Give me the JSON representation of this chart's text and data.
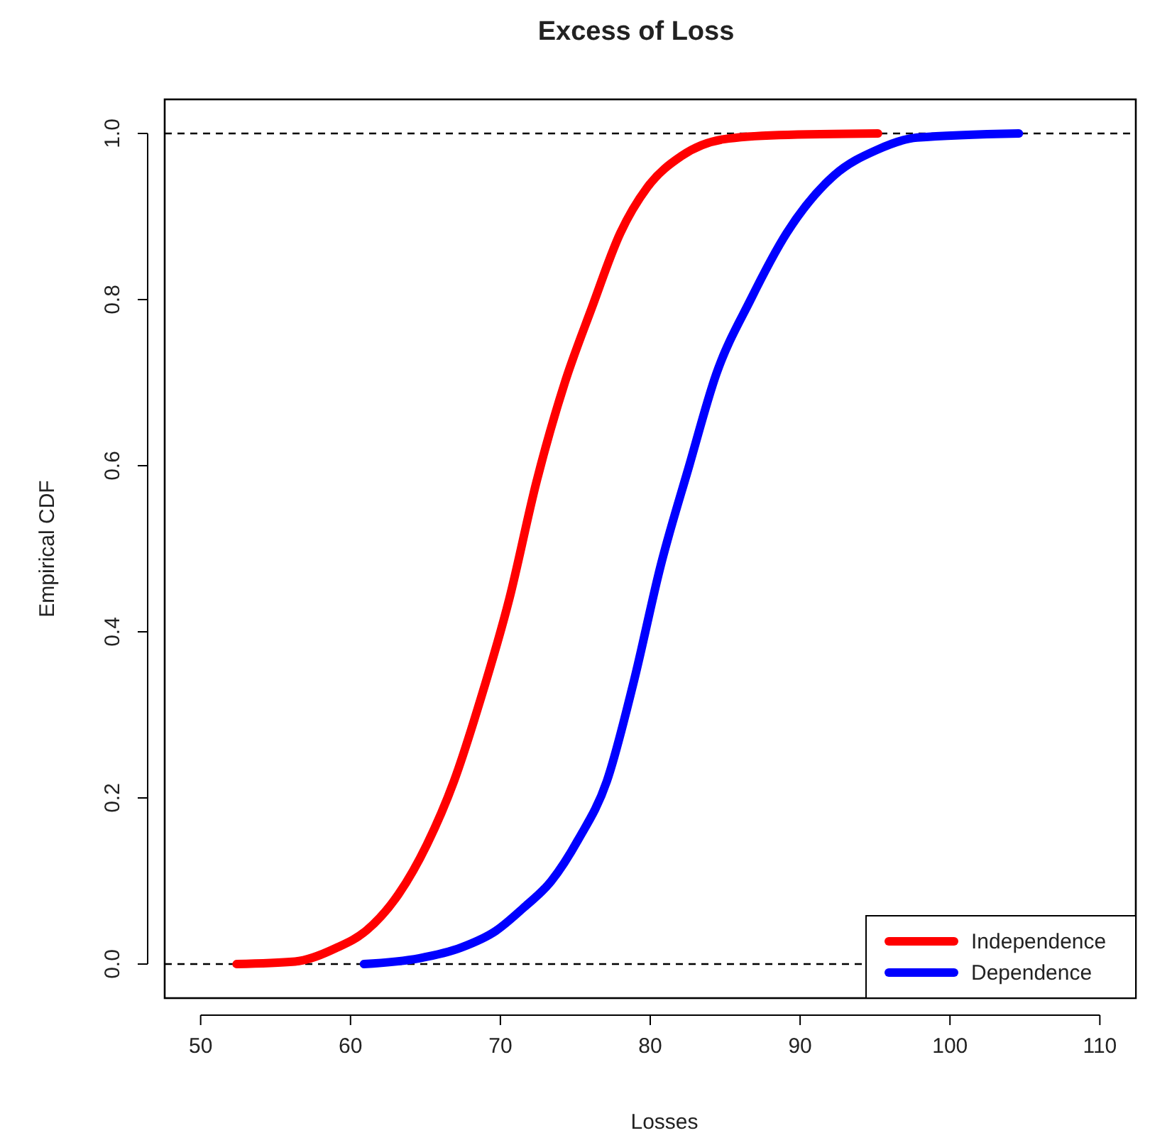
{
  "chart_data": {
    "type": "line",
    "title": "Excess of Loss",
    "xlabel": "Losses",
    "ylabel": "Empirical CDF",
    "xlim": [
      47.6,
      112.4
    ],
    "ylim": [
      -0.041,
      1.041
    ],
    "xticks": [
      50,
      60,
      70,
      80,
      90,
      100,
      110
    ],
    "yticks": [
      {
        "value": 0,
        "label": "0.0"
      },
      0.2,
      0.4,
      0.6,
      0.8,
      {
        "value": 1,
        "label": "1.0"
      }
    ],
    "series": [
      {
        "name": "Independence",
        "color": "#ff0000",
        "x": [
          52.4,
          56.3,
          59.0,
          61.1,
          63.2,
          65.1,
          66.9,
          68.7,
          70.6,
          72.4,
          74.3,
          76.1,
          78.0,
          79.8,
          82.1,
          84.9,
          88.6,
          95.2
        ],
        "values": [
          0,
          0.003,
          0.019,
          0.041,
          0.084,
          0.144,
          0.22,
          0.32,
          0.44,
          0.58,
          0.7,
          0.79,
          0.88,
          0.935,
          0.973,
          0.993,
          0.998,
          1.0
        ]
      },
      {
        "name": "Dependence",
        "color": "#0000ff",
        "x": [
          60.9,
          64.6,
          67.4,
          69.7,
          71.5,
          73.4,
          75.2,
          77.1,
          78.9,
          80.7,
          82.6,
          84.4,
          86.7,
          89.1,
          92.3,
          95.1,
          97.8,
          104.6
        ],
        "values": [
          0,
          0.007,
          0.02,
          0.04,
          0.067,
          0.1,
          0.15,
          0.22,
          0.34,
          0.48,
          0.6,
          0.71,
          0.8,
          0.88,
          0.95,
          0.98,
          0.995,
          1.0
        ]
      }
    ],
    "ref_lines": [
      {
        "axis": "y",
        "value": 0,
        "color": "#000000",
        "line_style": "dashed"
      },
      {
        "axis": "y",
        "value": 1,
        "color": "#000000",
        "line_style": "dashed"
      }
    ],
    "legend": "bottom right",
    "grid": false,
    "marker": "none",
    "line_style": "solid"
  }
}
